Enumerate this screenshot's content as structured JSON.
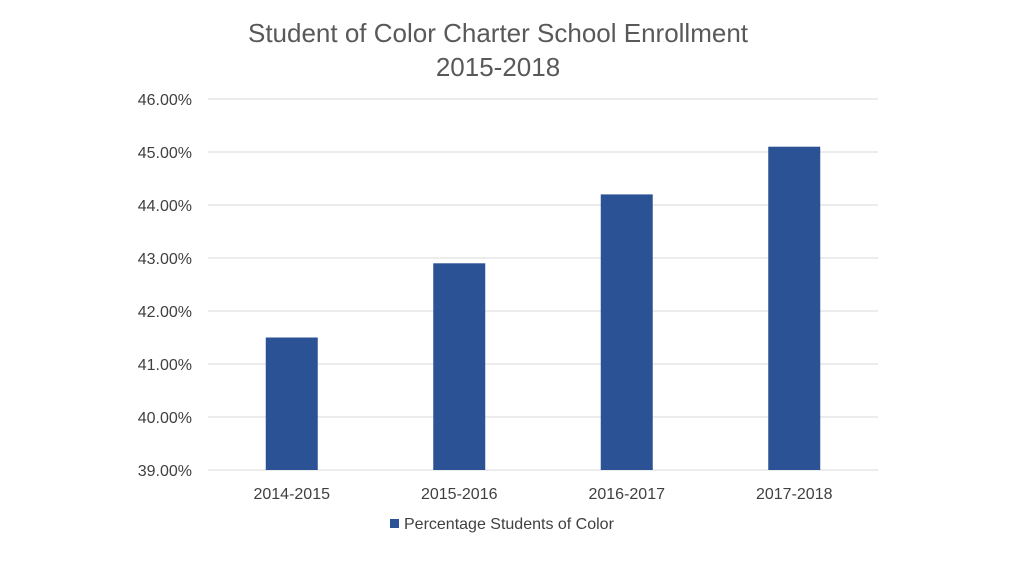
{
  "chart_data": {
    "type": "bar",
    "title": [
      "Student of Color Charter School Enrollment",
      "2015-2018"
    ],
    "categories": [
      "2014-2015",
      "2015-2016",
      "2016-2017",
      "2017-2018"
    ],
    "series": [
      {
        "name": "Percentage Students of Color",
        "color": "#2b5294",
        "values": [
          41.5,
          42.9,
          44.2,
          45.1
        ]
      }
    ],
    "ylim": [
      39,
      46
    ],
    "yticks": [
      39,
      40,
      41,
      42,
      43,
      44,
      45,
      46
    ],
    "ytick_labels": [
      "39.00%",
      "40.00%",
      "41.00%",
      "42.00%",
      "43.00%",
      "44.00%",
      "45.00%",
      "46.00%"
    ],
    "xlabel": "",
    "ylabel": "",
    "grid": true,
    "gridline_color": "#d9d9d9",
    "legend_position": "bottom"
  }
}
